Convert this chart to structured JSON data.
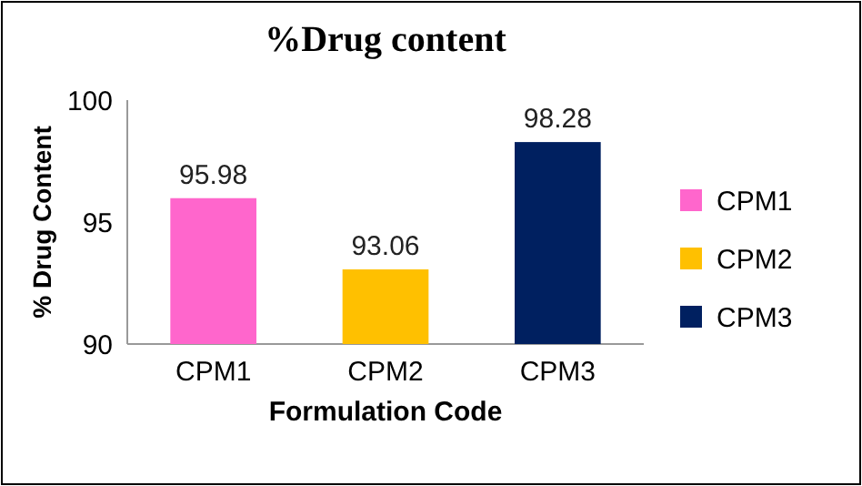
{
  "chart_data": {
    "type": "bar",
    "title": "%Drug content",
    "xlabel": "Formulation Code",
    "ylabel": "% Drug Content",
    "categories": [
      "CPM1",
      "CPM2",
      "CPM3"
    ],
    "series": [
      {
        "name": "CPM1",
        "color": "#ff66cc",
        "values": [
          95.98,
          null,
          null
        ]
      },
      {
        "name": "CPM2",
        "color": "#ffc000",
        "values": [
          null,
          93.06,
          null
        ]
      },
      {
        "name": "CPM3",
        "color": "#002060",
        "values": [
          null,
          null,
          98.28
        ]
      }
    ],
    "ylim": [
      90,
      100
    ],
    "yticks": [
      90,
      95,
      100
    ],
    "grid": false,
    "legend": "right",
    "data_labels": true
  }
}
